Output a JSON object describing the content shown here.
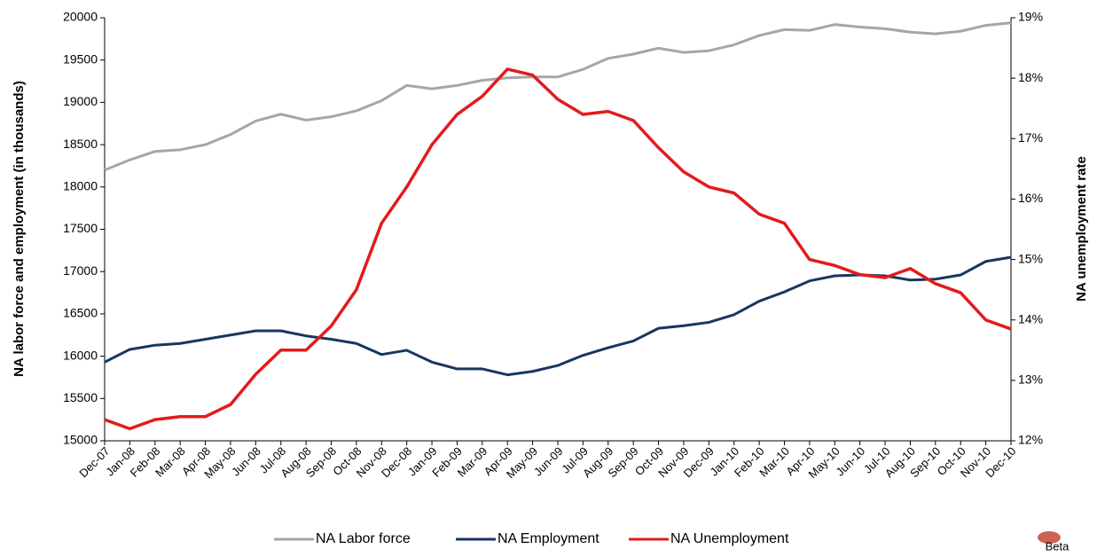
{
  "chart_data": {
    "type": "line",
    "y_label": "NA labor force and employment (in thousands)",
    "y2_label": "NA unemployment rate",
    "watermark": "Beta",
    "categories": [
      "Dec-07",
      "Jan-08",
      "Feb-08",
      "Mar-08",
      "Apr-08",
      "May-08",
      "Jun-08",
      "Jul-08",
      "Aug-08",
      "Sep-08",
      "Oct-08",
      "Nov-08",
      "Dec-08",
      "Jan-09",
      "Feb-09",
      "Mar-09",
      "Apr-09",
      "May-09",
      "Jun-09",
      "Jul-09",
      "Aug-09",
      "Sep-09",
      "Oct-09",
      "Nov-09",
      "Dec-09",
      "Jan-10",
      "Feb-10",
      "Mar-10",
      "Apr-10",
      "May-10",
      "Jun-10",
      "Jul-10",
      "Aug-10",
      "Sep-10",
      "Oct-10",
      "Nov-10",
      "Dec-10"
    ],
    "series": [
      {
        "name": "NA Labor force",
        "color": "#a6a6a6",
        "values": [
          18200,
          18320,
          18420,
          18440,
          18500,
          18620,
          18780,
          18860,
          18790,
          18830,
          18900,
          19020,
          19200,
          19160,
          19200,
          19260,
          19290,
          19300,
          19300,
          19390,
          19520,
          19570,
          19640,
          19590,
          19610,
          19680,
          19790,
          19860,
          19850,
          19920,
          19890,
          19870,
          19830,
          19810,
          19840,
          19910,
          19940
        ]
      },
      {
        "name": "NA Employment",
        "color": "#17375e",
        "values": [
          15930,
          16080,
          16130,
          16150,
          16200,
          16250,
          16300,
          16300,
          16240,
          16200,
          16150,
          16020,
          16070,
          15930,
          15850,
          15850,
          15780,
          15820,
          15890,
          16010,
          16100,
          16180,
          16330,
          16360,
          16400,
          16490,
          16650,
          16760,
          16890,
          16950,
          16960,
          16950,
          16900,
          16910,
          16960,
          17120,
          17170
        ]
      },
      {
        "name": "NA Unemployment",
        "color": "#e41a1c",
        "axis": "y2",
        "values": [
          12.35,
          12.2,
          12.35,
          12.4,
          12.4,
          12.6,
          13.1,
          13.5,
          13.5,
          13.9,
          14.5,
          15.6,
          16.2,
          16.9,
          17.4,
          17.7,
          18.15,
          18.05,
          17.65,
          17.4,
          17.45,
          17.3,
          16.85,
          16.45,
          16.2,
          16.1,
          15.75,
          15.6,
          15.0,
          14.9,
          14.75,
          14.7,
          14.85,
          14.6,
          14.45,
          14.0,
          13.85
        ]
      }
    ],
    "ylim": [
      15000,
      20000
    ],
    "yticks": [
      15000,
      15500,
      16000,
      16500,
      17000,
      17500,
      18000,
      18500,
      19000,
      19500,
      20000
    ],
    "y2lim": [
      12,
      19
    ],
    "y2ticks": [
      {
        "value": 12,
        "label": "12%"
      },
      {
        "value": 13,
        "label": "13%"
      },
      {
        "value": 14,
        "label": "14%"
      },
      {
        "value": 15,
        "label": "15%"
      },
      {
        "value": 16,
        "label": "16%"
      },
      {
        "value": 17,
        "label": "17%"
      },
      {
        "value": 18,
        "label": "18%"
      },
      {
        "value": 19,
        "label": "19%"
      }
    ],
    "grid": false,
    "legend": "bottom"
  }
}
